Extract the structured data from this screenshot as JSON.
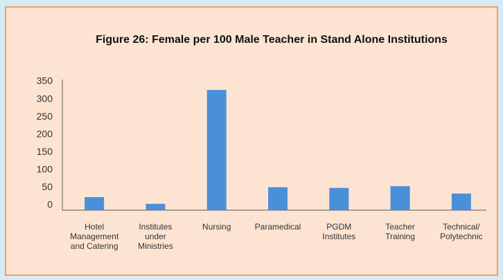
{
  "chart_data": {
    "type": "bar",
    "title": "Figure 26: Female per 100 Male Teacher in Stand Alone Institutions",
    "categories": [
      "Hotel\nManagement\nand Catering",
      "Institutes\nunder\nMinistries",
      "Nursing",
      "Paramedical",
      "PGDM\nInstitutes",
      "Teacher\nTraining",
      "Technical/\nPolytechnic"
    ],
    "values": [
      37,
      18,
      340,
      65,
      63,
      68,
      47
    ],
    "color": "#4a90d9",
    "ylim": [
      0,
      350
    ],
    "yticks": [
      0,
      50,
      100,
      150,
      200,
      250,
      300,
      350
    ],
    "grid": false
  }
}
